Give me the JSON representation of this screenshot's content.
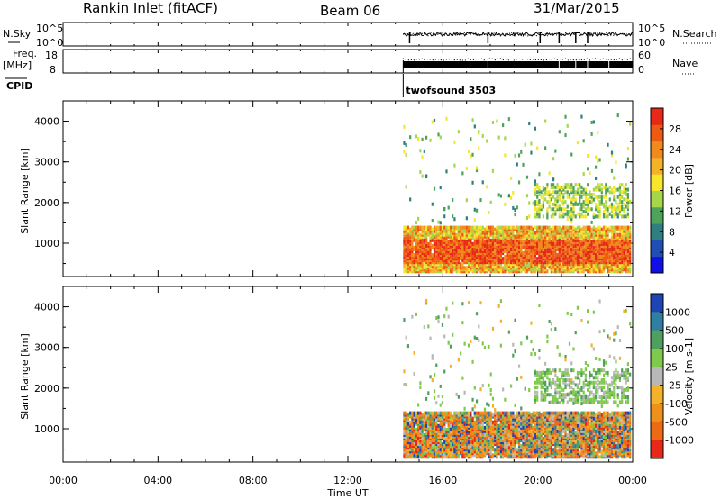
{
  "header": {
    "station": "Rankin Inlet (fitACF)",
    "beam": "Beam 06",
    "date": "31/Mar/2015"
  },
  "chart_data": [
    {
      "type": "line",
      "panel": "noise",
      "left_label": "N.Sky",
      "right_label": "N.Search",
      "left_ticks": [
        "10^5",
        "10^0"
      ],
      "right_ticks": [
        "10^5",
        "10^0"
      ]
    },
    {
      "type": "line",
      "panel": "freq-nave",
      "left_label_line1": "Freq.",
      "left_label_line2": "[MHz]",
      "right_label": "Nave",
      "left_ticks": [
        "18",
        "8"
      ],
      "right_ticks": [
        "60",
        "0"
      ]
    },
    {
      "type": "table",
      "panel": "cpid",
      "label": "CPID",
      "entries": [
        {
          "start_hour": 14.33,
          "name": "twofsound 3503"
        }
      ]
    },
    {
      "type": "heatmap",
      "panel": "power",
      "ylabel": "Slant Range [km]",
      "ylim": [
        180,
        4500
      ],
      "yticks": [
        1000,
        2000,
        3000,
        4000
      ],
      "xlim": [
        0,
        24
      ],
      "data_start_hour": 14.33,
      "colorbar_label": "Power [dB]",
      "colorbar_ticks": [
        "4",
        "8",
        "12",
        "16",
        "20",
        "24",
        "28"
      ],
      "colorbar_colors": [
        "#1010e6",
        "#1f4fb4",
        "#2f7f7f",
        "#4fa25a",
        "#a6d64a",
        "#f7e62a",
        "#f4b22a",
        "#f08a1c",
        "#ee5a14",
        "#e82818"
      ]
    },
    {
      "type": "heatmap",
      "panel": "velocity",
      "ylabel": "Slant Range [km]",
      "ylim": [
        180,
        4500
      ],
      "yticks": [
        1000,
        2000,
        3000,
        4000
      ],
      "xlim": [
        0,
        24
      ],
      "data_start_hour": 14.33,
      "colorbar_label": "Velocity [m s-1]",
      "colorbar_ticks": [
        "1000",
        "500",
        "100",
        "25",
        "-25",
        "-100",
        "-500",
        "-1000"
      ],
      "colorbar_colors": [
        "#1f45b4",
        "#2f7fa0",
        "#4f9f5f",
        "#7fca4a",
        "#b8b8b8",
        "#f4b22a",
        "#f0901c",
        "#ee6a14",
        "#e82818"
      ]
    }
  ],
  "xaxis": {
    "label": "Time UT",
    "ticks": [
      "00:00",
      "04:00",
      "08:00",
      "12:00",
      "16:00",
      "20:00",
      "00:00"
    ]
  }
}
